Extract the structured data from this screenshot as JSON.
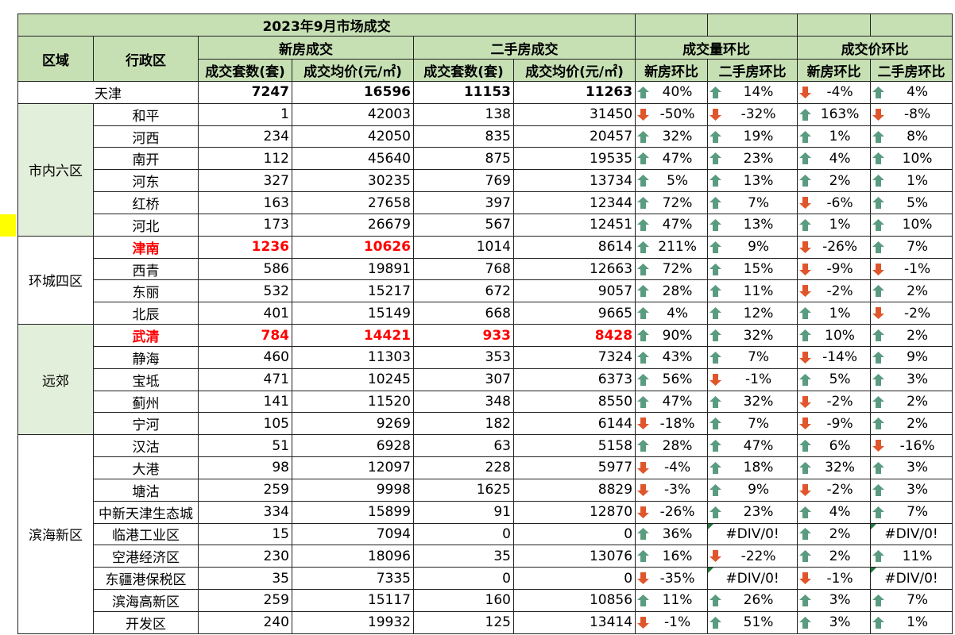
{
  "header": {
    "title": "2023年9月市场成交",
    "region": "区域",
    "district": "行政区",
    "groups": [
      "新房成交",
      "二手房成交",
      "成交量环比",
      "成交价环比"
    ],
    "subheaders": [
      "成交套数(套)",
      "成交均价(元/㎡)",
      "成交套数(套)",
      "成交均价(元/㎡)",
      "新房环比",
      "二手房环比",
      "新房环比",
      "二手房环比"
    ]
  },
  "total": {
    "name": "天津",
    "values": [
      7247,
      16596,
      11153,
      11263,
      "40%",
      "14%",
      "-4%",
      "4%"
    ]
  },
  "regions": [
    {
      "name": "市内六区",
      "districts": [
        {
          "name": "和平",
          "values": [
            1,
            42003,
            138,
            31450,
            "-50%",
            "-32%",
            "163%",
            "-8%"
          ]
        },
        {
          "name": "河西",
          "values": [
            234,
            42050,
            835,
            20457,
            "32%",
            "19%",
            "1%",
            "8%"
          ]
        },
        {
          "name": "南开",
          "values": [
            112,
            45640,
            875,
            19535,
            "47%",
            "23%",
            "4%",
            "10%"
          ]
        },
        {
          "name": "河东",
          "values": [
            327,
            30235,
            769,
            13734,
            "5%",
            "13%",
            "2%",
            "1%"
          ]
        },
        {
          "name": "红桥",
          "values": [
            163,
            27658,
            397,
            12344,
            "72%",
            "7%",
            "-6%",
            "5%"
          ]
        },
        {
          "name": "河北",
          "values": [
            173,
            26679,
            567,
            12451,
            "47%",
            "13%",
            "1%",
            "10%"
          ]
        }
      ]
    },
    {
      "name": "环城四区",
      "districts": [
        {
          "name": "津南",
          "values": [
            1236,
            10626,
            1014,
            8614,
            "211%",
            "9%",
            "-26%",
            "7%"
          ]
        },
        {
          "name": "西青",
          "values": [
            586,
            19891,
            768,
            12663,
            "72%",
            "15%",
            "-9%",
            "-1%"
          ]
        },
        {
          "name": "东丽",
          "values": [
            532,
            15217,
            672,
            9057,
            "28%",
            "11%",
            "-2%",
            "2%"
          ]
        },
        {
          "name": "北辰",
          "values": [
            401,
            15149,
            668,
            9665,
            "4%",
            "12%",
            "1%",
            "-2%"
          ]
        }
      ]
    },
    {
      "name": "远郊",
      "districts": [
        {
          "name": "武清",
          "values": [
            784,
            14421,
            933,
            8428,
            "90%",
            "32%",
            "10%",
            "2%"
          ]
        },
        {
          "name": "静海",
          "values": [
            460,
            11303,
            353,
            7324,
            "43%",
            "7%",
            "-14%",
            "9%"
          ]
        },
        {
          "name": "宝坻",
          "values": [
            471,
            10245,
            307,
            6373,
            "56%",
            "-1%",
            "5%",
            "3%"
          ]
        },
        {
          "name": "蓟州",
          "values": [
            141,
            11520,
            348,
            8550,
            "47%",
            "32%",
            "-2%",
            "2%"
          ]
        },
        {
          "name": "宁河",
          "values": [
            105,
            9269,
            182,
            6144,
            "-18%",
            "7%",
            "-9%",
            "2%"
          ]
        }
      ]
    },
    {
      "name": "滨海新区",
      "districts": [
        {
          "name": "汉沽",
          "values": [
            51,
            6928,
            63,
            5158,
            "28%",
            "47%",
            "6%",
            "-16%"
          ]
        },
        {
          "name": "大港",
          "values": [
            98,
            12097,
            228,
            5977,
            "-4%",
            "18%",
            "32%",
            "3%"
          ]
        },
        {
          "name": "塘沽",
          "values": [
            259,
            9998,
            1625,
            8829,
            "-3%",
            "9%",
            "-2%",
            "3%"
          ]
        },
        {
          "name": "中新天津生态城",
          "values": [
            334,
            15899,
            91,
            12870,
            "-26%",
            "23%",
            "4%",
            "7%"
          ]
        },
        {
          "name": "临港工业区",
          "values": [
            15,
            7094,
            0,
            0,
            "36%",
            "#DIV/0!",
            "2%",
            "#DIV/0!"
          ]
        },
        {
          "name": "空港经济区",
          "values": [
            230,
            18096,
            35,
            13076,
            "16%",
            "-22%",
            "2%",
            "11%"
          ]
        },
        {
          "name": "东疆港保税区",
          "values": [
            35,
            7335,
            0,
            0,
            "-35%",
            "#DIV/0!",
            "-1%",
            "#DIV/0!"
          ]
        },
        {
          "name": "滨海高新区",
          "values": [
            259,
            15117,
            160,
            10856,
            "11%",
            "26%",
            "3%",
            "7%"
          ]
        },
        {
          "name": "开发区",
          "values": [
            240,
            19932,
            125,
            13414,
            "-1%",
            "51%",
            "3%",
            "1%"
          ]
        }
      ]
    }
  ]
}
